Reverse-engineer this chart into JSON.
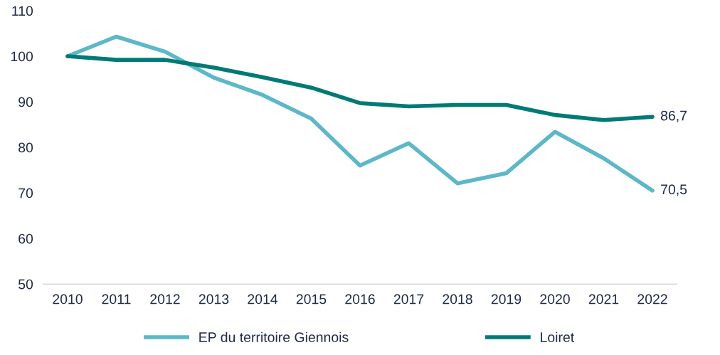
{
  "chart_data": {
    "type": "line",
    "categories": [
      "2010",
      "2011",
      "2012",
      "2013",
      "2014",
      "2015",
      "2016",
      "2017",
      "2018",
      "2019",
      "2020",
      "2021",
      "2022"
    ],
    "series": [
      {
        "name": "EP du territoire Giennois",
        "color": "#5bb8c9",
        "values": [
          100,
          104.3,
          101,
          95.3,
          91.5,
          86.3,
          76,
          80.9,
          72.1,
          74.3,
          83.4,
          77.6,
          70.5
        ],
        "value_labels": [
          null,
          null,
          null,
          null,
          null,
          null,
          null,
          null,
          null,
          null,
          null,
          null,
          "70,5"
        ]
      },
      {
        "name": "Loiret",
        "color": "#007a75",
        "values": [
          100,
          99.2,
          99.2,
          97.5,
          95.4,
          93.1,
          89.7,
          89,
          89.3,
          89.3,
          87.1,
          86,
          86.7
        ],
        "value_labels": [
          null,
          null,
          null,
          null,
          null,
          null,
          null,
          null,
          null,
          null,
          null,
          null,
          "86,7"
        ]
      }
    ],
    "ylim": [
      50,
      110
    ],
    "yticks": [
      50,
      60,
      70,
      80,
      90,
      100,
      110
    ],
    "grid": false,
    "legend": "bottom",
    "marker": "none",
    "line_style": "solid"
  }
}
